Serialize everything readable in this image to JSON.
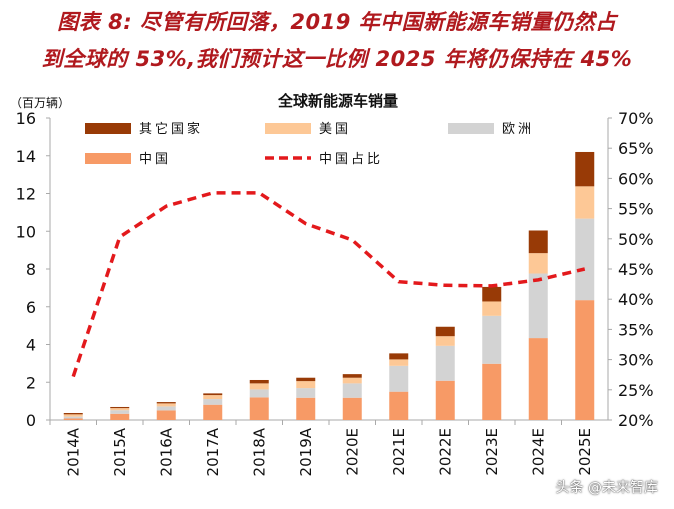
{
  "heading": {
    "line1": "图表 8: 尽管有所回落，2019 年中国新能源车销量仍然占",
    "line2": "到全球的 53%,我们预计这一比例 2025 年将仍保持在 45%"
  },
  "watermark": "头条 @未来智库",
  "chart_data": {
    "type": "bar",
    "stacked": true,
    "title": "全球新能源车销量",
    "ylabel": "（百万辆）",
    "ylim": [
      0,
      16
    ],
    "yticks": [
      "0",
      "2",
      "4",
      "6",
      "8",
      "10",
      "12",
      "14",
      "16"
    ],
    "y2lim": [
      20,
      70
    ],
    "y2ticks": [
      "20%",
      "25%",
      "30%",
      "35%",
      "40%",
      "45%",
      "50%",
      "55%",
      "60%",
      "65%",
      "70%"
    ],
    "grid": false,
    "legend_position": "top",
    "categories": [
      "2014A",
      "2015A",
      "2016A",
      "2017A",
      "2018A",
      "2019A",
      "2020E",
      "2021E",
      "2022E",
      "2023E",
      "2024E",
      "2025E"
    ],
    "series": [
      {
        "name": "中国",
        "color": "#f79a66",
        "values": [
          0.08,
          0.33,
          0.51,
          0.81,
          1.2,
          1.18,
          1.18,
          1.5,
          2.08,
          2.98,
          4.34,
          6.35
        ]
      },
      {
        "name": "欧洲",
        "color": "#d3d3d3",
        "values": [
          0.1,
          0.19,
          0.21,
          0.3,
          0.42,
          0.51,
          0.76,
          1.37,
          1.85,
          2.54,
          3.42,
          4.32
        ]
      },
      {
        "name": "美国",
        "color": "#fdc896",
        "values": [
          0.12,
          0.11,
          0.16,
          0.21,
          0.32,
          0.37,
          0.3,
          0.34,
          0.51,
          0.76,
          1.08,
          1.71
        ]
      },
      {
        "name": "其它国家",
        "color": "#983a06",
        "values": [
          0.07,
          0.06,
          0.07,
          0.09,
          0.18,
          0.18,
          0.19,
          0.32,
          0.5,
          0.77,
          1.2,
          1.82
        ]
      }
    ],
    "line_series": {
      "name": "中国占比",
      "color": "#e3191c",
      "axis": "right",
      "values": [
        27.2,
        50.3,
        55.4,
        57.6,
        57.6,
        52.5,
        49.8,
        42.9,
        42.3,
        42.2,
        43.2,
        45.0
      ]
    }
  }
}
